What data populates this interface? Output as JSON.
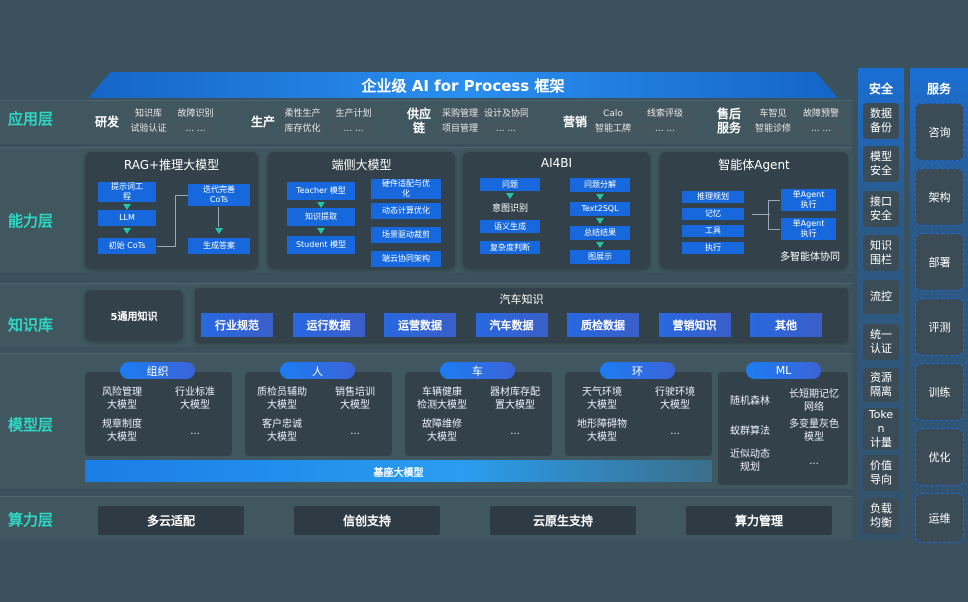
{
  "title": "企业级 AI for Process 框架",
  "layers": {
    "app": "应用层",
    "capability": "能力层",
    "knowledge": "知识库",
    "model": "模型层",
    "compute": "算力层"
  },
  "application": [
    {
      "name": "研发",
      "items": [
        "知识库",
        "故障识别",
        "试验认证",
        "... ..."
      ]
    },
    {
      "name": "生产",
      "items": [
        "柔性生产",
        "生产计划",
        "库存优化",
        "... ..."
      ]
    },
    {
      "name": "供应\n链",
      "items": [
        "采购管理",
        "设计及协同",
        "项目管理",
        "... ..."
      ]
    },
    {
      "name": "营销",
      "items": [
        "Calo",
        "线索评级",
        "智能工牌",
        "... ..."
      ]
    },
    {
      "name": "售后\n服务",
      "items": [
        "车智见",
        "故障预警",
        "智能诊修",
        "... ..."
      ]
    }
  ],
  "capability": {
    "rag": {
      "title": "RAG+推理大模型",
      "nodes": [
        "提示词工\n程",
        "LLM",
        "初始 CoTs",
        "迭代完善\nCoTs",
        "生成答案"
      ]
    },
    "edge": {
      "title": "端侧大模型",
      "left": [
        "Teacher 模型",
        "知识提取",
        "Student 模型"
      ],
      "right": [
        "硬件适配与优\n化",
        "动态计算优化",
        "场景驱动裁剪",
        "端云协同架构"
      ]
    },
    "ai4bi": {
      "title": "AI4BI",
      "left": [
        "问题",
        "意图识别",
        "语义生成",
        "复杂度判断"
      ],
      "right": [
        "问题分解",
        "Text2SQL",
        "总结结果",
        "图展示"
      ]
    },
    "agent": {
      "title": "智能体Agent",
      "left": [
        "推理规划",
        "记忆",
        "工具",
        "执行"
      ],
      "right": [
        "单Agent\n执行",
        "单Agent\n执行"
      ],
      "footer": "多智能体协同"
    }
  },
  "knowledge": {
    "general": "5通用知识",
    "auto_title": "汽车知识",
    "items": [
      "行业规范",
      "运行数据",
      "运营数据",
      "汽车数据",
      "质检数据",
      "营销知识",
      "其他"
    ]
  },
  "model": {
    "groups": [
      {
        "name": "组织",
        "items": [
          "风险管理\n大模型",
          "行业标准\n大模型",
          "规章制度\n大模型",
          "..."
        ]
      },
      {
        "name": "人",
        "items": [
          "质检员辅助\n大模型",
          "销售培训\n大模型",
          "客户忠诚\n大模型",
          "..."
        ]
      },
      {
        "name": "车",
        "items": [
          "车辆健康\n检测大模型",
          "器材库存配\n置大模型",
          "故障维修\n大模型",
          "..."
        ]
      },
      {
        "name": "环",
        "items": [
          "天气环境\n大模型",
          "行驶环境\n大模型",
          "地形障碍物\n大模型",
          "..."
        ]
      }
    ],
    "ml": {
      "name": "ML",
      "items": [
        "随机森林",
        "长短期记忆\n网络",
        "蚁群算法",
        "多变量灰色\n模型",
        "近似动态\n规划",
        "..."
      ]
    },
    "base": "基座大模型"
  },
  "compute": [
    "多云适配",
    "信创支持",
    "云原生支持",
    "算力管理"
  ],
  "security": {
    "title": "安全",
    "items": [
      "数据\n备份",
      "模型\n安全",
      "接口\n安全",
      "知识\n围栏",
      "流控",
      "统一\n认证",
      "资源\n隔离",
      "Toke\nn\n计量",
      "价值\n导向",
      "负载\n均衡"
    ]
  },
  "services": {
    "title": "服务",
    "items": [
      "咨询",
      "架构",
      "部署",
      "评测",
      "训练",
      "优化",
      "运维"
    ]
  },
  "colors": {
    "background": "#3b525c",
    "accent_blue": "#1668dc",
    "layer_label": "#2fd6c2"
  }
}
